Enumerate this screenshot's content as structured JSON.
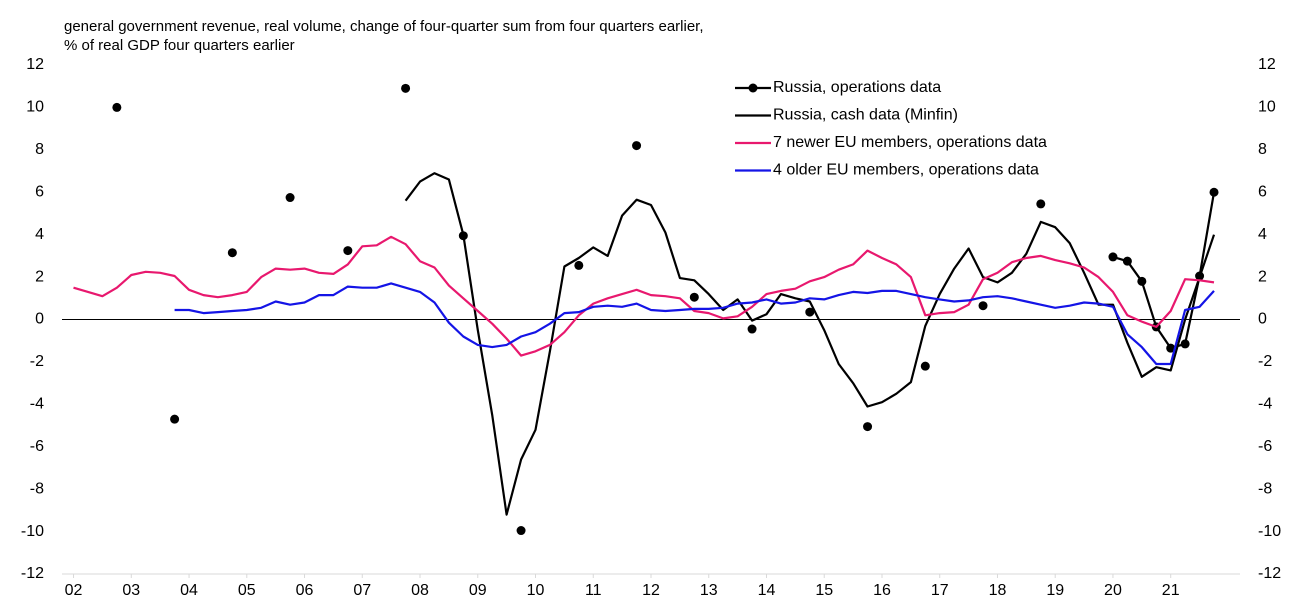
{
  "chart_data": {
    "type": "line",
    "subtitle": [
      "general government revenue, real volume, change of four-quarter sum from four quarters earlier,",
      "% of real GDP four quarters earlier"
    ],
    "x": [
      2002,
      2002.25,
      2002.5,
      2002.75,
      2003,
      2003.25,
      2003.5,
      2003.75,
      2004,
      2004.25,
      2004.5,
      2004.75,
      2005,
      2005.25,
      2005.5,
      2005.75,
      2006,
      2006.25,
      2006.5,
      2006.75,
      2007,
      2007.25,
      2007.5,
      2007.75,
      2008,
      2008.25,
      2008.5,
      2008.75,
      2009,
      2009.25,
      2009.5,
      2009.75,
      2010,
      2010.25,
      2010.5,
      2010.75,
      2011,
      2011.25,
      2011.5,
      2011.75,
      2012,
      2012.25,
      2012.5,
      2012.75,
      2013,
      2013.25,
      2013.5,
      2013.75,
      2014,
      2014.25,
      2014.5,
      2014.75,
      2015,
      2015.25,
      2015.5,
      2015.75,
      2016,
      2016.25,
      2016.5,
      2016.75,
      2017,
      2017.25,
      2017.5,
      2017.75,
      2018,
      2018.25,
      2018.5,
      2018.75,
      2019,
      2019.25,
      2019.5,
      2019.75,
      2020,
      2020.25,
      2020.5,
      2020.75,
      2021,
      2021.25,
      2021.5,
      2021.75
    ],
    "series": [
      {
        "name": "Russia, operations data",
        "color": "#000000",
        "marker": true,
        "values": [
          null,
          null,
          null,
          10.0,
          null,
          null,
          null,
          -4.7,
          null,
          null,
          null,
          3.15,
          null,
          null,
          null,
          5.75,
          null,
          null,
          null,
          3.25,
          null,
          null,
          null,
          10.9,
          null,
          null,
          null,
          3.95,
          null,
          null,
          null,
          -9.95,
          null,
          null,
          null,
          2.55,
          null,
          null,
          null,
          8.2,
          null,
          null,
          null,
          1.05,
          null,
          null,
          null,
          -0.45,
          null,
          null,
          null,
          0.35,
          null,
          null,
          null,
          -5.05,
          null,
          null,
          null,
          -2.2,
          null,
          null,
          null,
          0.65,
          null,
          null,
          null,
          5.45,
          null,
          null,
          null,
          null,
          2.95,
          2.75,
          1.8,
          -0.35,
          -1.35,
          -1.15,
          2.05,
          6.0
        ]
      },
      {
        "name": "Russia, cash data (Minfin)",
        "color": "#000000",
        "marker": false,
        "values": [
          null,
          null,
          null,
          null,
          null,
          null,
          null,
          null,
          null,
          null,
          null,
          null,
          null,
          null,
          null,
          null,
          null,
          null,
          null,
          null,
          null,
          null,
          null,
          5.6,
          6.5,
          6.9,
          6.6,
          4.0,
          -0.5,
          -4.5,
          -9.2,
          -6.6,
          -5.2,
          -1.5,
          2.5,
          2.9,
          3.4,
          3.0,
          4.9,
          5.65,
          5.4,
          4.1,
          1.95,
          1.85,
          1.2,
          0.45,
          0.95,
          -0.05,
          0.25,
          1.2,
          1.0,
          0.85,
          -0.5,
          -2.1,
          -3.0,
          -4.1,
          -3.9,
          -3.5,
          -2.95,
          -0.3,
          1.2,
          2.4,
          3.35,
          2.0,
          1.75,
          2.2,
          3.1,
          4.6,
          4.35,
          3.6,
          2.2,
          0.7,
          0.7,
          -1.1,
          -2.7,
          -2.25,
          -2.4,
          0.0,
          2.0,
          4.0
        ]
      },
      {
        "name": "7 newer EU members, operations data",
        "color": "#e8186e",
        "marker": false,
        "values": [
          1.5,
          1.3,
          1.1,
          1.5,
          2.1,
          2.25,
          2.2,
          2.05,
          1.4,
          1.15,
          1.05,
          1.15,
          1.3,
          2.0,
          2.4,
          2.35,
          2.4,
          2.2,
          2.15,
          2.6,
          3.45,
          3.5,
          3.9,
          3.55,
          2.75,
          2.45,
          1.6,
          1.0,
          0.4,
          -0.2,
          -0.9,
          -1.7,
          -1.5,
          -1.2,
          -0.6,
          0.2,
          0.75,
          1.0,
          1.2,
          1.4,
          1.15,
          1.1,
          1.0,
          0.4,
          0.3,
          0.05,
          0.15,
          0.6,
          1.2,
          1.35,
          1.45,
          1.8,
          2.0,
          2.35,
          2.6,
          3.25,
          2.9,
          2.6,
          2.0,
          0.2,
          0.3,
          0.35,
          0.7,
          1.9,
          2.2,
          2.7,
          2.9,
          3.0,
          2.8,
          2.65,
          2.45,
          2.0,
          1.3,
          0.2,
          -0.1,
          -0.35,
          0.4,
          1.9,
          1.85,
          1.75
        ]
      },
      {
        "name": "4 older EU members, operations data",
        "color": "#1414e6",
        "marker": false,
        "values": [
          null,
          null,
          null,
          null,
          null,
          null,
          null,
          0.45,
          0.45,
          0.3,
          0.35,
          0.4,
          0.45,
          0.55,
          0.85,
          0.7,
          0.8,
          1.15,
          1.15,
          1.55,
          1.5,
          1.5,
          1.7,
          1.5,
          1.3,
          0.8,
          -0.15,
          -0.8,
          -1.2,
          -1.3,
          -1.2,
          -0.8,
          -0.6,
          -0.2,
          0.3,
          0.35,
          0.6,
          0.65,
          0.6,
          0.75,
          0.45,
          0.4,
          0.45,
          0.5,
          0.5,
          0.55,
          0.75,
          0.8,
          0.95,
          0.75,
          0.8,
          1.0,
          0.95,
          1.15,
          1.3,
          1.25,
          1.35,
          1.35,
          1.2,
          1.05,
          0.95,
          0.85,
          0.9,
          1.05,
          1.1,
          1.0,
          0.85,
          0.7,
          0.55,
          0.65,
          0.8,
          0.75,
          0.6,
          -0.7,
          -1.3,
          -2.1,
          -2.1,
          0.45,
          0.6,
          1.35
        ]
      }
    ],
    "xlim": [
      2001.8,
      2022.2
    ],
    "xticks": [
      {
        "value": 2002,
        "label": "02"
      },
      {
        "value": 2003,
        "label": "03"
      },
      {
        "value": 2004,
        "label": "04"
      },
      {
        "value": 2005,
        "label": "05"
      },
      {
        "value": 2006,
        "label": "06"
      },
      {
        "value": 2007,
        "label": "07"
      },
      {
        "value": 2008,
        "label": "08"
      },
      {
        "value": 2009,
        "label": "09"
      },
      {
        "value": 2010,
        "label": "10"
      },
      {
        "value": 2011,
        "label": "11"
      },
      {
        "value": 2012,
        "label": "12"
      },
      {
        "value": 2013,
        "label": "13"
      },
      {
        "value": 2014,
        "label": "14"
      },
      {
        "value": 2015,
        "label": "15"
      },
      {
        "value": 2016,
        "label": "16"
      },
      {
        "value": 2017,
        "label": "17"
      },
      {
        "value": 2018,
        "label": "18"
      },
      {
        "value": 2019,
        "label": "19"
      },
      {
        "value": 2020,
        "label": "20"
      },
      {
        "value": 2021,
        "label": "21"
      }
    ],
    "ylim": [
      -12,
      12
    ],
    "yticks": [
      -12,
      -10,
      -8,
      -6,
      -4,
      -2,
      0,
      2,
      4,
      6,
      8,
      10,
      12
    ],
    "y2lim": [
      -12,
      12
    ],
    "y2ticks": [
      -12,
      -10,
      -8,
      -6,
      -4,
      -2,
      0,
      2,
      4,
      6,
      8,
      10,
      12
    ],
    "legend": "upper right"
  }
}
